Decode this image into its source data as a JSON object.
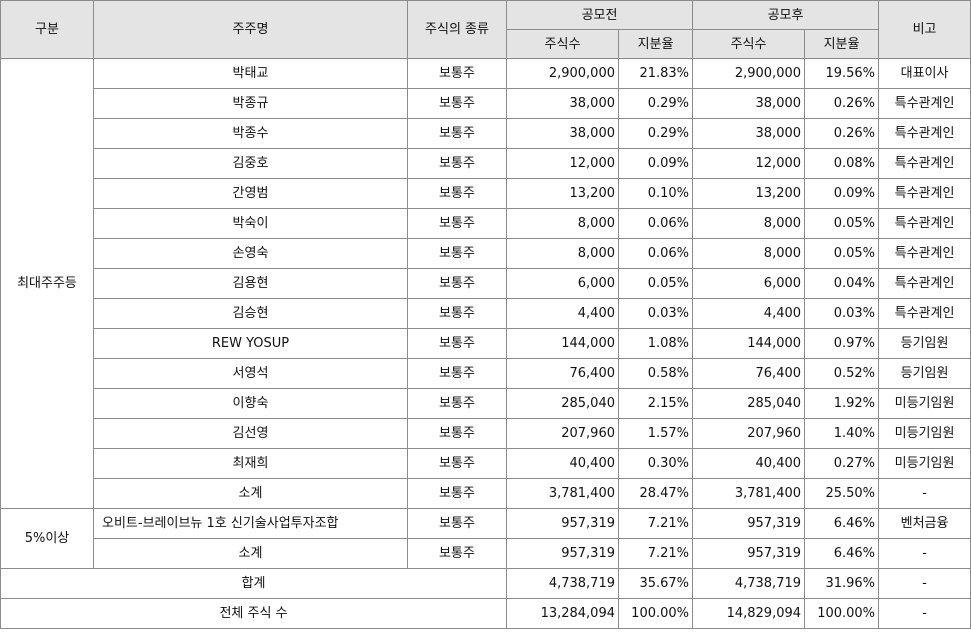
{
  "headers": {
    "category": "구분",
    "holder": "주주명",
    "stock_type": "주식의 종류",
    "before": "공모전",
    "after": "공모후",
    "shares": "주식수",
    "ratio": "지분율",
    "note": "비고"
  },
  "groups": {
    "major": "최대주주등",
    "five_pct": "5%이상"
  },
  "major_rows": [
    {
      "name": "박태교",
      "type": "보통주",
      "before_shares": "2,900,000",
      "before_ratio": "21.83%",
      "after_shares": "2,900,000",
      "after_ratio": "19.56%",
      "note": "대표이사"
    },
    {
      "name": "박종규",
      "type": "보통주",
      "before_shares": "38,000",
      "before_ratio": "0.29%",
      "after_shares": "38,000",
      "after_ratio": "0.26%",
      "note": "특수관계인"
    },
    {
      "name": "박종수",
      "type": "보통주",
      "before_shares": "38,000",
      "before_ratio": "0.29%",
      "after_shares": "38,000",
      "after_ratio": "0.26%",
      "note": "특수관계인"
    },
    {
      "name": "김중호",
      "type": "보통주",
      "before_shares": "12,000",
      "before_ratio": "0.09%",
      "after_shares": "12,000",
      "after_ratio": "0.08%",
      "note": "특수관계인"
    },
    {
      "name": "간영범",
      "type": "보통주",
      "before_shares": "13,200",
      "before_ratio": "0.10%",
      "after_shares": "13,200",
      "after_ratio": "0.09%",
      "note": "특수관계인"
    },
    {
      "name": "박숙이",
      "type": "보통주",
      "before_shares": "8,000",
      "before_ratio": "0.06%",
      "after_shares": "8,000",
      "after_ratio": "0.05%",
      "note": "특수관계인"
    },
    {
      "name": "손영숙",
      "type": "보통주",
      "before_shares": "8,000",
      "before_ratio": "0.06%",
      "after_shares": "8,000",
      "after_ratio": "0.05%",
      "note": "특수관계인"
    },
    {
      "name": "김용현",
      "type": "보통주",
      "before_shares": "6,000",
      "before_ratio": "0.05%",
      "after_shares": "6,000",
      "after_ratio": "0.04%",
      "note": "특수관계인"
    },
    {
      "name": "김승현",
      "type": "보통주",
      "before_shares": "4,400",
      "before_ratio": "0.03%",
      "after_shares": "4,400",
      "after_ratio": "0.03%",
      "note": "특수관계인"
    },
    {
      "name": "REW YOSUP",
      "type": "보통주",
      "before_shares": "144,000",
      "before_ratio": "1.08%",
      "after_shares": "144,000",
      "after_ratio": "0.97%",
      "note": "등기임원"
    },
    {
      "name": "서영석",
      "type": "보통주",
      "before_shares": "76,400",
      "before_ratio": "0.58%",
      "after_shares": "76,400",
      "after_ratio": "0.52%",
      "note": "등기임원"
    },
    {
      "name": "이향숙",
      "type": "보통주",
      "before_shares": "285,040",
      "before_ratio": "2.15%",
      "after_shares": "285,040",
      "after_ratio": "1.92%",
      "note": "미등기임원"
    },
    {
      "name": "김선영",
      "type": "보통주",
      "before_shares": "207,960",
      "before_ratio": "1.57%",
      "after_shares": "207,960",
      "after_ratio": "1.40%",
      "note": "미등기임원"
    },
    {
      "name": "최재희",
      "type": "보통주",
      "before_shares": "40,400",
      "before_ratio": "0.30%",
      "after_shares": "40,400",
      "after_ratio": "0.27%",
      "note": "미등기임원"
    },
    {
      "name": "소계",
      "type": "보통주",
      "before_shares": "3,781,400",
      "before_ratio": "28.47%",
      "after_shares": "3,781,400",
      "after_ratio": "25.50%",
      "note": "-"
    }
  ],
  "five_pct_rows": [
    {
      "name": "오비트-브레이브뉴 1호 신기술사업투자조합",
      "type": "보통주",
      "before_shares": "957,319",
      "before_ratio": "7.21%",
      "after_shares": "957,319",
      "after_ratio": "6.46%",
      "note": "벤처금융"
    },
    {
      "name": "소계",
      "type": "보통주",
      "before_shares": "957,319",
      "before_ratio": "7.21%",
      "after_shares": "957,319",
      "after_ratio": "6.46%",
      "note": "-"
    }
  ],
  "total": {
    "label": "합계",
    "before_shares": "4,738,719",
    "before_ratio": "35.67%",
    "after_shares": "4,738,719",
    "after_ratio": "31.96%",
    "note": "-"
  },
  "all_shares": {
    "label": "전체 주식 수",
    "before_shares": "13,284,094",
    "before_ratio": "100.00%",
    "after_shares": "14,829,094",
    "after_ratio": "100.00%",
    "note": "-"
  }
}
